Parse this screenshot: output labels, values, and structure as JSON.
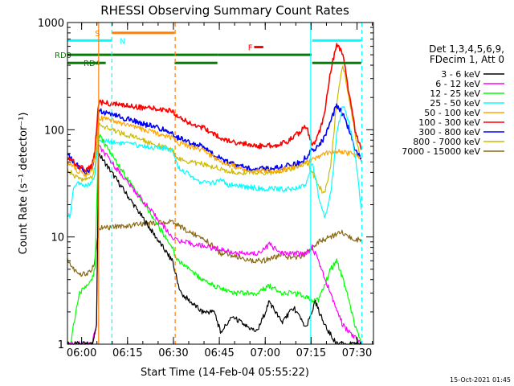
{
  "chart_data": {
    "type": "line",
    "title": "RHESSI Observing Summary Count Rates",
    "xlabel": "Start Time (14-Feb-04 05:55:22)",
    "ylabel": "Count Rate (s⁻¹ detector⁻¹)",
    "y_scale": "log",
    "ylim": [
      1,
      1000
    ],
    "xlim_minutes": [
      0,
      100
    ],
    "x_start": "05:55:22",
    "x_ticks": [
      {
        "label": "06:00",
        "minutes": 4.63
      },
      {
        "label": "06:15",
        "minutes": 19.63
      },
      {
        "label": "06:30",
        "minutes": 34.63
      },
      {
        "label": "06:45",
        "minutes": 49.63
      },
      {
        "label": "07:00",
        "minutes": 64.63
      },
      {
        "label": "07:15",
        "minutes": 79.63
      },
      {
        "label": "07:30",
        "minutes": 94.63
      }
    ],
    "y_ticks": [
      {
        "label": "1",
        "value": 1
      },
      {
        "label": "10",
        "value": 10
      },
      {
        "label": "100",
        "value": 100
      },
      {
        "label": "1000",
        "value": 1000
      }
    ],
    "info_line1": "Det 1,3,4,5,6,9,",
    "info_line2": "FDecim 1, Att 0",
    "footer_date": "15-Oct-2021 01:45",
    "series": [
      {
        "name": "3 - 6 keV",
        "color": "#000000",
        "x": [
          0,
          4,
          8,
          9.5,
          10.2,
          34.2,
          37,
          44,
          48,
          50,
          54,
          58,
          62,
          66,
          70,
          74,
          78,
          81,
          84,
          88,
          91,
          94,
          96
        ],
        "y": [
          1,
          1,
          1,
          1.5,
          60,
          6,
          3,
          2,
          2,
          1.3,
          1.8,
          1.5,
          1.3,
          2.5,
          1.6,
          2.2,
          1.4,
          2.5,
          1.5,
          1,
          1,
          1,
          1
        ]
      },
      {
        "name": "6 - 12 keV",
        "color": "#ff00ff",
        "x": [
          0,
          4,
          8,
          9.5,
          10.2,
          34.2,
          37,
          42,
          46,
          52,
          56,
          62,
          66,
          70,
          74,
          78,
          80,
          82,
          86,
          90,
          96
        ],
        "y": [
          1,
          1,
          1,
          1.5,
          70,
          10,
          9,
          8.5,
          8,
          7.5,
          7,
          7,
          8.5,
          7,
          7,
          7,
          8,
          6,
          3,
          1.5,
          1
        ]
      },
      {
        "name": "12 - 25 keV",
        "color": "#00ff00",
        "x": [
          0,
          1,
          2,
          4,
          6,
          8,
          9,
          10.2,
          34.2,
          36,
          40,
          44,
          48,
          54,
          58,
          62,
          66,
          70,
          74,
          78,
          80,
          82,
          84,
          86,
          88,
          90,
          92,
          94,
          96
        ],
        "y": [
          1,
          1,
          1.5,
          3,
          3.5,
          4,
          5,
          90,
          8,
          6,
          5,
          4,
          3.5,
          3,
          3,
          3,
          3.5,
          3,
          3,
          2.8,
          2.5,
          2.6,
          3.5,
          5,
          6,
          4,
          2.5,
          1.5,
          1
        ]
      },
      {
        "name": "25 - 50 keV",
        "color": "#00ffff",
        "x": [
          0,
          1,
          2,
          4,
          6,
          8,
          9,
          10.2,
          34.2,
          36,
          40,
          44,
          48,
          50,
          52,
          56,
          60,
          64,
          68,
          72,
          76,
          78,
          80,
          82,
          84,
          86,
          88,
          90,
          92,
          94,
          96
        ],
        "y": [
          16,
          16,
          30,
          32,
          30,
          32,
          38,
          80,
          65,
          45,
          38,
          32,
          32,
          35,
          31,
          30,
          29,
          28,
          28,
          28,
          29,
          32,
          50,
          25,
          15,
          25,
          90,
          170,
          120,
          60,
          18
        ]
      },
      {
        "name": "50 - 100 keV",
        "color": "#ffa500",
        "x": [
          0,
          1,
          2,
          4,
          6,
          8,
          9,
          10.2,
          34.2,
          36,
          40,
          44,
          48,
          52,
          56,
          60,
          64,
          68,
          72,
          76,
          80,
          82,
          84,
          86,
          88,
          90,
          92,
          94,
          96
        ],
        "y": [
          50,
          48,
          45,
          40,
          38,
          42,
          55,
          130,
          85,
          75,
          70,
          65,
          55,
          48,
          44,
          42,
          41,
          41,
          43,
          46,
          52,
          55,
          60,
          62,
          62,
          62,
          60,
          58,
          55
        ]
      },
      {
        "name": "100 - 300 keV",
        "color": "#ff0000",
        "x": [
          0,
          1,
          2,
          4,
          6,
          8,
          9,
          10.2,
          34.2,
          36,
          40,
          44,
          48,
          52,
          56,
          60,
          64,
          68,
          72,
          76,
          78,
          80,
          82,
          84,
          86,
          88,
          90,
          92,
          94,
          96
        ],
        "y": [
          55,
          53,
          50,
          45,
          42,
          46,
          65,
          180,
          150,
          130,
          115,
          105,
          90,
          80,
          75,
          72,
          70,
          72,
          78,
          95,
          110,
          70,
          90,
          140,
          350,
          640,
          500,
          220,
          100,
          65
        ]
      },
      {
        "name": "300 - 800 keV",
        "color": "#0000ff",
        "x": [
          0,
          1,
          2,
          4,
          6,
          8,
          9,
          10.2,
          34.2,
          36,
          40,
          44,
          48,
          52,
          56,
          60,
          64,
          68,
          72,
          76,
          78,
          80,
          82,
          84,
          86,
          88,
          90,
          92,
          94,
          96
        ],
        "y": [
          60,
          55,
          50,
          44,
          40,
          44,
          60,
          150,
          95,
          85,
          75,
          70,
          58,
          50,
          46,
          44,
          43,
          44,
          46,
          50,
          55,
          65,
          70,
          85,
          120,
          170,
          140,
          100,
          65,
          55
        ]
      },
      {
        "name": "800 - 7000 keV",
        "color": "#ccbb00",
        "x": [
          0,
          1,
          2,
          4,
          6,
          8,
          9,
          10.2,
          34.2,
          36,
          40,
          44,
          48,
          52,
          56,
          60,
          64,
          68,
          72,
          76,
          78,
          80,
          82,
          84,
          86,
          88,
          90,
          92,
          94,
          96
        ],
        "y": [
          42,
          40,
          38,
          35,
          34,
          36,
          45,
          110,
          65,
          55,
          50,
          48,
          45,
          42,
          40,
          40,
          40,
          40,
          42,
          46,
          50,
          40,
          30,
          25,
          45,
          180,
          400,
          200,
          90,
          50
        ]
      },
      {
        "name": "7000 - 15000 keV",
        "color": "#8b6914",
        "x": [
          0,
          1,
          2,
          4,
          6,
          8,
          9,
          10.2,
          34.2,
          36,
          40,
          44,
          48,
          50,
          52,
          56,
          60,
          64,
          68,
          70,
          72,
          76,
          78,
          80,
          82,
          84,
          86,
          88,
          90,
          92,
          94,
          96
        ],
        "y": [
          6,
          5.5,
          5,
          4.5,
          4.5,
          5,
          6,
          12,
          14,
          13,
          11,
          10,
          8,
          7,
          7,
          6.5,
          6,
          6,
          6.5,
          7,
          6.5,
          6.5,
          7,
          8,
          9,
          9.5,
          10,
          10.5,
          11,
          10,
          9.5,
          9.5
        ]
      }
    ],
    "attenuator_flags": [
      {
        "label": "",
        "color": "#00ffff",
        "y_value": 680,
        "ranges": [
          [
            0,
            14.5
          ],
          [
            80,
            96
          ]
        ]
      },
      {
        "label": "",
        "color": "#ff7f00",
        "y_value": 800,
        "ranges": [
          [
            14.5,
            35
          ]
        ]
      },
      {
        "label": "",
        "color": "#007f00",
        "y_value": 500,
        "ranges": [
          [
            0,
            34.8
          ],
          [
            34.8,
            49.3
          ],
          [
            49.3,
            79.8
          ]
        ]
      },
      {
        "label": "",
        "color": "#007f00",
        "y_value": 420,
        "ranges": [
          [
            0,
            12.5
          ],
          [
            35,
            49
          ],
          [
            80,
            96
          ]
        ]
      },
      {
        "label": "",
        "color": "#ff0000",
        "y_value": 590,
        "ranges": [
          [
            61,
            64
          ]
        ]
      }
    ],
    "flag_labels": [
      "S",
      "N",
      "RD0",
      "RD4",
      "F"
    ],
    "vertical_markers": [
      {
        "minutes": 10.2,
        "color": "#ff7f00",
        "style": "solid"
      },
      {
        "minutes": 14.5,
        "color": "#00ffff",
        "style": "dashed"
      },
      {
        "minutes": 35.2,
        "color": "#ff7f00",
        "style": "dashed"
      },
      {
        "minutes": 79.5,
        "color": "#00ffff",
        "style": "solid"
      },
      {
        "minutes": 96.2,
        "color": "#00ffff",
        "style": "dashed"
      }
    ]
  }
}
